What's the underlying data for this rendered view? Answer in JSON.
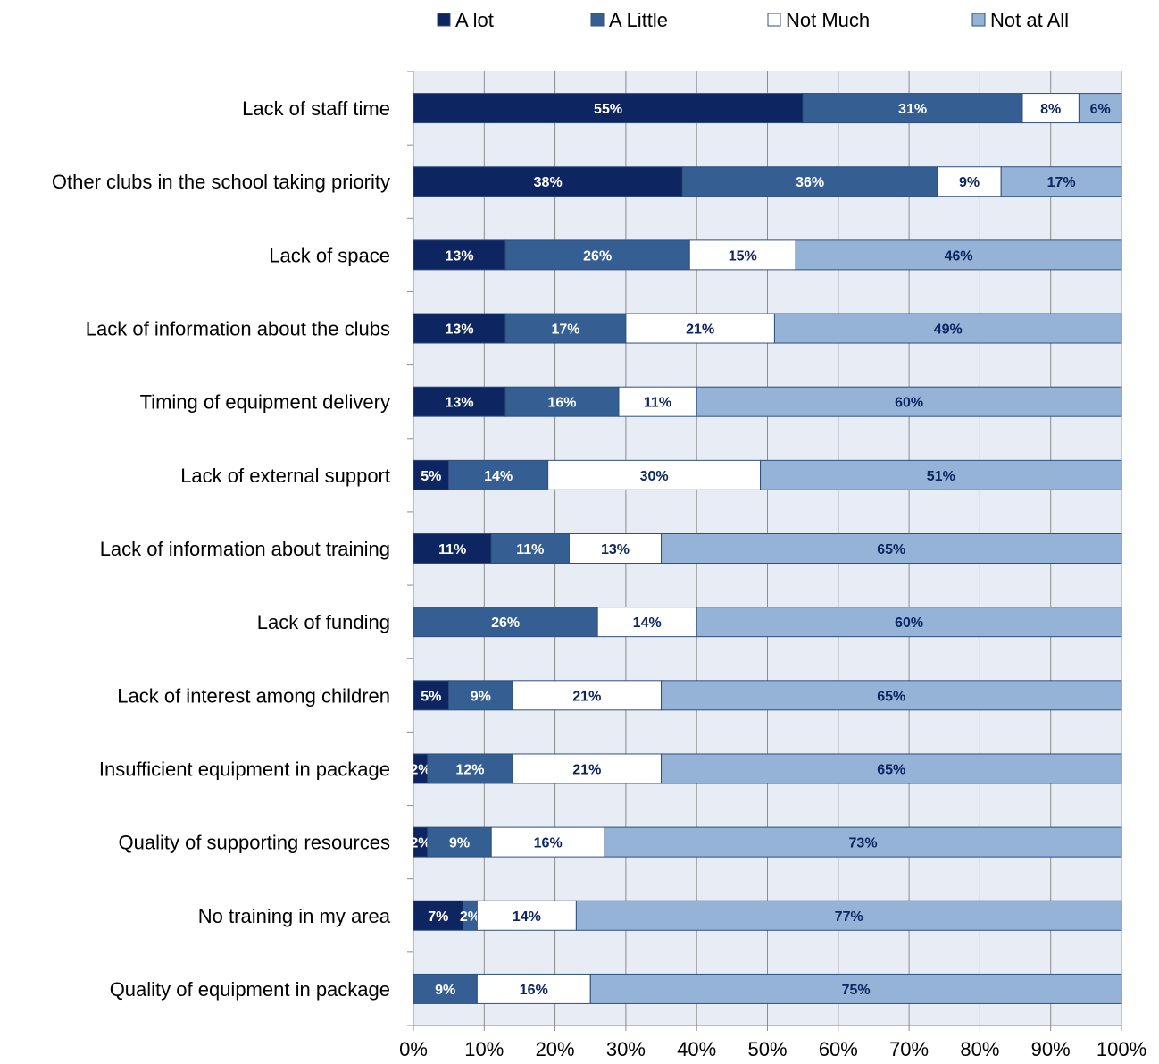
{
  "chart_data": {
    "type": "bar",
    "orientation": "horizontal",
    "stacked": true,
    "categories": [
      "Lack of staff time",
      "Other clubs in the school taking priority",
      "Lack of space",
      "Lack of information about the clubs",
      "Timing of equipment delivery",
      "Lack of external support",
      "Lack of information about training",
      "Lack of funding",
      "Lack of interest among children",
      "Insufficient equipment in package",
      "Quality of supporting resources",
      "No training in my area",
      "Quality of equipment in package"
    ],
    "series": [
      {
        "name": "A lot",
        "color": "#0d2560",
        "label_color": "#ffffff",
        "values": [
          55,
          38,
          13,
          13,
          13,
          5,
          11,
          0,
          5,
          2,
          2,
          7,
          0
        ]
      },
      {
        "name": "A Little",
        "color": "#355f93",
        "label_color": "#ffffff",
        "values": [
          31,
          36,
          26,
          17,
          16,
          14,
          11,
          26,
          9,
          12,
          9,
          2,
          9
        ]
      },
      {
        "name": "Not Much",
        "color": "#ffffff",
        "label_color": "#0d2560",
        "values": [
          8,
          9,
          15,
          21,
          11,
          30,
          13,
          14,
          21,
          21,
          16,
          14,
          16
        ]
      },
      {
        "name": "Not at All",
        "color": "#95b3d7",
        "label_color": "#0d2560",
        "values": [
          6,
          17,
          46,
          49,
          60,
          51,
          65,
          60,
          65,
          65,
          73,
          77,
          75
        ]
      }
    ],
    "x_ticks": [
      "0%",
      "10%",
      "20%",
      "30%",
      "40%",
      "50%",
      "60%",
      "70%",
      "80%",
      "90%",
      "100%"
    ],
    "xlim": [
      0,
      100
    ],
    "grid": true,
    "legend_position": "top",
    "plot_background": "#e8edf5",
    "bar_stroke": "#2f4f7f"
  }
}
